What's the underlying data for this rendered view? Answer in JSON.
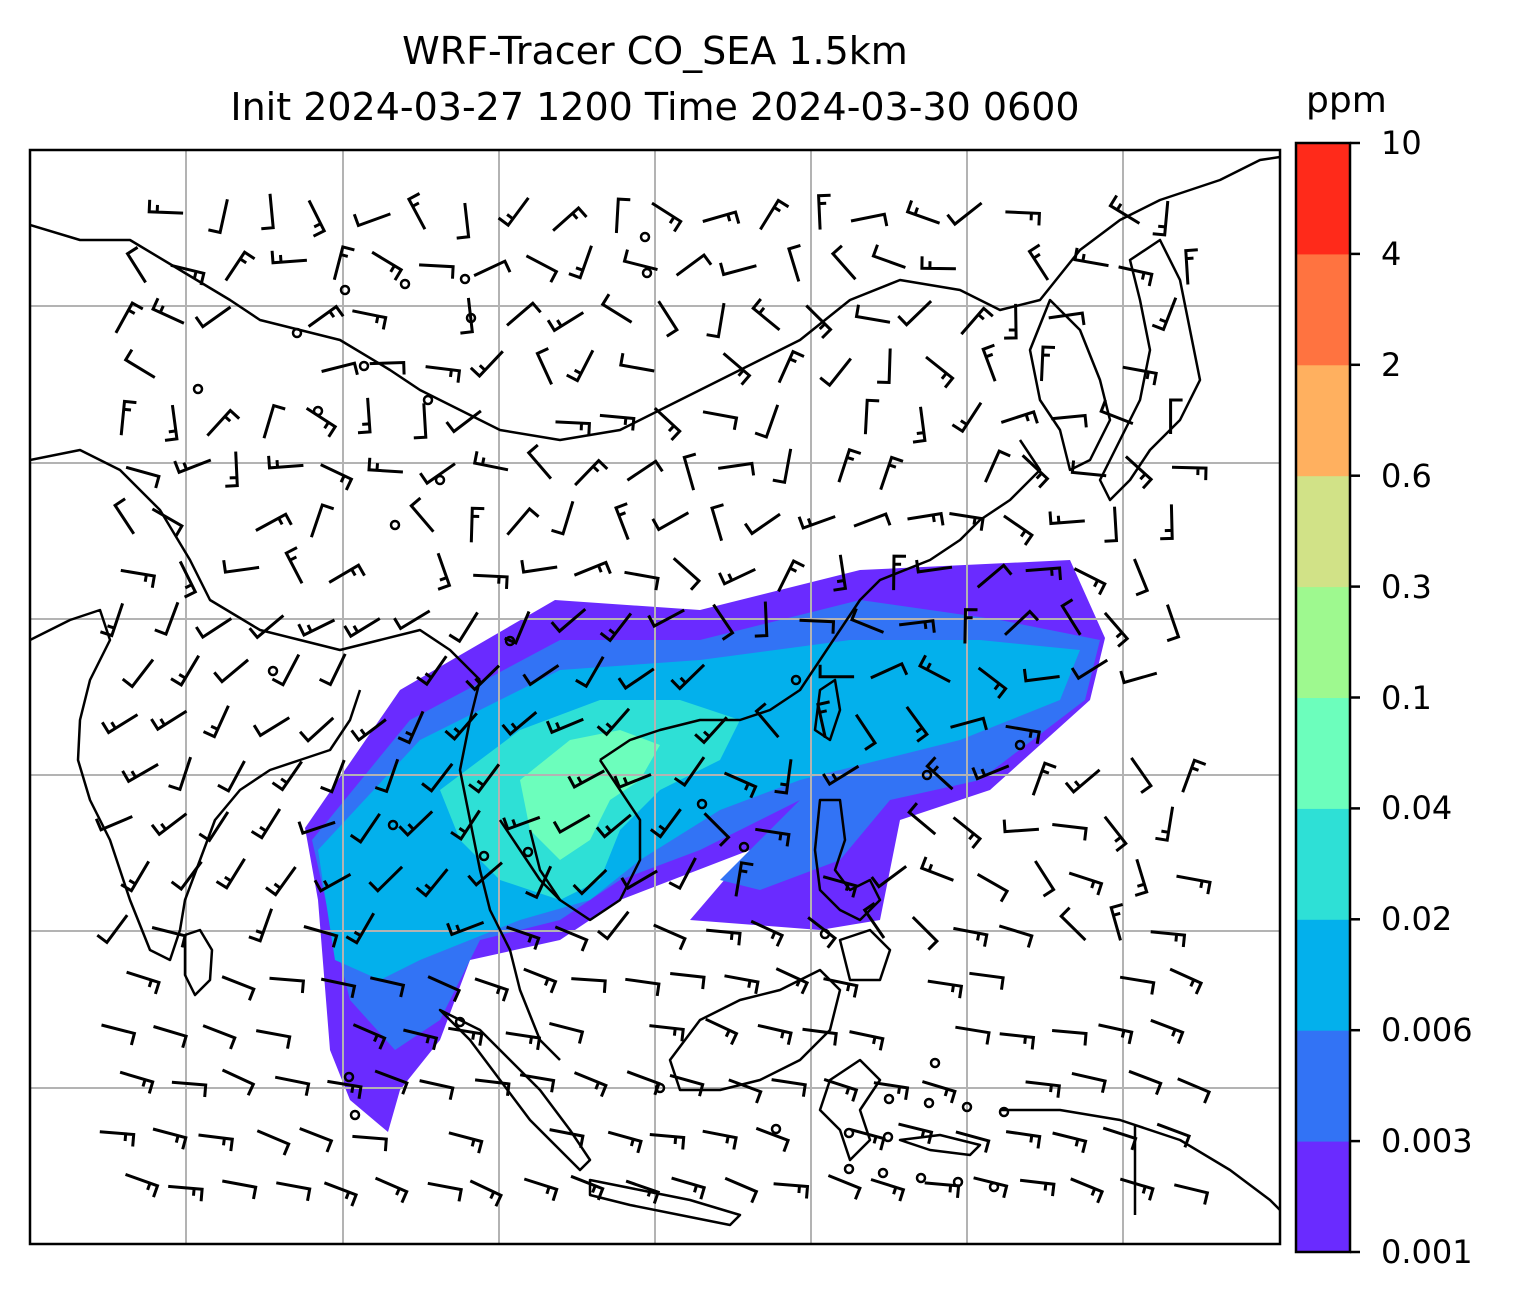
{
  "title": {
    "line1": "WRF-Tracer CO_SEA 1.5km",
    "line2": "Init 2024-03-27 1200 Time 2024-03-30 0600"
  },
  "colorbar": {
    "unit": "ppm",
    "levels": [
      "0.001",
      "0.003",
      "0.006",
      "0.02",
      "0.04",
      "0.1",
      "0.3",
      "0.6",
      "2",
      "4",
      "10"
    ],
    "colors": [
      "#6a2bff",
      "#3273f5",
      "#03b0ec",
      "#2ee0d6",
      "#6cfebc",
      "#9ef98f",
      "#d1e287",
      "#ffb05f",
      "#ff7340",
      "#ff2a1a"
    ]
  },
  "colors": {
    "coast": "#000000",
    "grid": "#b3b3b3",
    "barb": "#000000"
  }
}
